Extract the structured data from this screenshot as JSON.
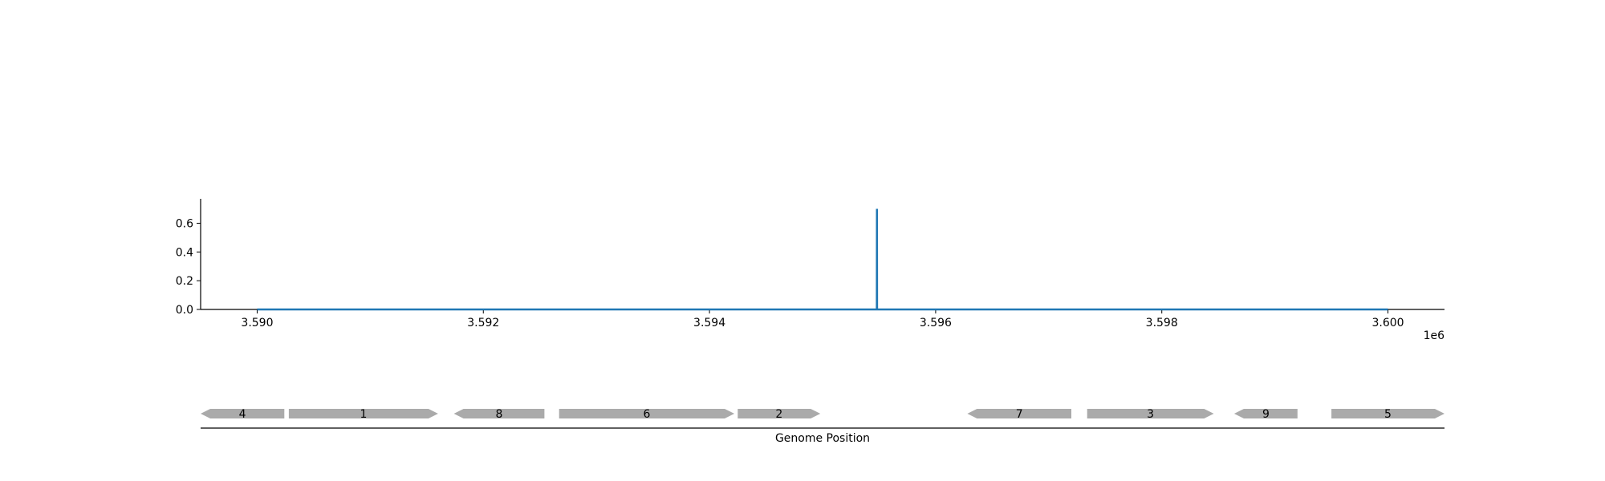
{
  "chart_data": {
    "type": "line",
    "x": [
      3590000,
      3595480,
      3595481,
      3595482,
      3600000
    ],
    "series": [
      {
        "values": [
          0.0,
          0.0,
          0.7,
          0.0,
          0.0
        ],
        "color": "#1f77b4"
      }
    ],
    "xlim": [
      3589500,
      3600500
    ],
    "ylim": [
      0,
      0.77
    ],
    "xticks": [
      3590000,
      3592000,
      3594000,
      3596000,
      3598000,
      3600000
    ],
    "xtick_labels": [
      "3.590",
      "3.592",
      "3.594",
      "3.596",
      "3.598",
      "3.600"
    ],
    "x_offset_label": "1e6",
    "yticks": [
      0.0,
      0.2,
      0.4,
      0.6
    ],
    "ytick_labels": [
      "0.0",
      "0.2",
      "0.4",
      "0.6"
    ],
    "grid": false,
    "genes": {
      "xlabel": "Genome Position",
      "color": "#aaaaaa",
      "features": [
        {
          "label": "4",
          "start": 3589500,
          "end": 3590240,
          "strand": -1
        },
        {
          "label": "1",
          "start": 3590280,
          "end": 3591600,
          "strand": 1
        },
        {
          "label": "8",
          "start": 3591740,
          "end": 3592540,
          "strand": -1
        },
        {
          "label": "6",
          "start": 3592670,
          "end": 3594220,
          "strand": 1
        },
        {
          "label": "2",
          "start": 3594250,
          "end": 3594980,
          "strand": 1
        },
        {
          "label": "7",
          "start": 3596280,
          "end": 3597200,
          "strand": -1
        },
        {
          "label": "3",
          "start": 3597340,
          "end": 3598460,
          "strand": 1
        },
        {
          "label": "9",
          "start": 3598640,
          "end": 3599200,
          "strand": -1
        },
        {
          "label": "5",
          "start": 3599500,
          "end": 3600500,
          "strand": 1
        }
      ]
    }
  }
}
